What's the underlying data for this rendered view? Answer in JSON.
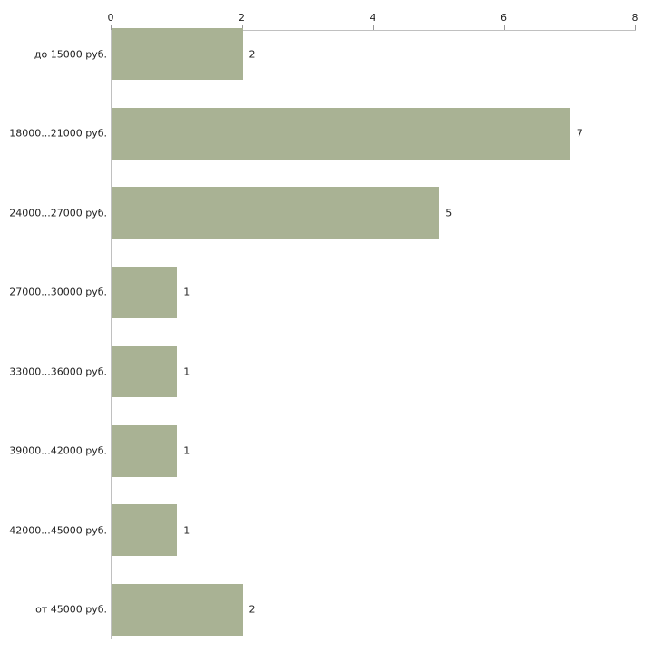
{
  "chart_data": {
    "type": "bar",
    "orientation": "horizontal",
    "title": "",
    "xlabel": "",
    "ylabel": "",
    "categories": [
      "до 15000 руб.",
      "18000...21000 руб.",
      "24000...27000 руб.",
      "27000...30000 руб.",
      "33000...36000 руб.",
      "39000...42000 руб.",
      "42000...45000 руб.",
      "от 45000 руб."
    ],
    "values": [
      2,
      7,
      5,
      1,
      1,
      1,
      1,
      2
    ],
    "value_labels": [
      "2",
      "7",
      "5",
      "1",
      "1",
      "1",
      "1",
      "2"
    ],
    "xlim": [
      0,
      8
    ],
    "x_ticks": [
      0,
      2,
      4,
      6,
      8
    ],
    "x_tick_labels": [
      "0",
      "2",
      "4",
      "6",
      "8"
    ],
    "grid": false,
    "legend": null,
    "bar_color": "#a9b294",
    "axis_color": "#c0c0c0",
    "tick_color": "#999999",
    "text_color": "#222222",
    "background_color": "#ffffff",
    "x_axis_position": "top"
  }
}
